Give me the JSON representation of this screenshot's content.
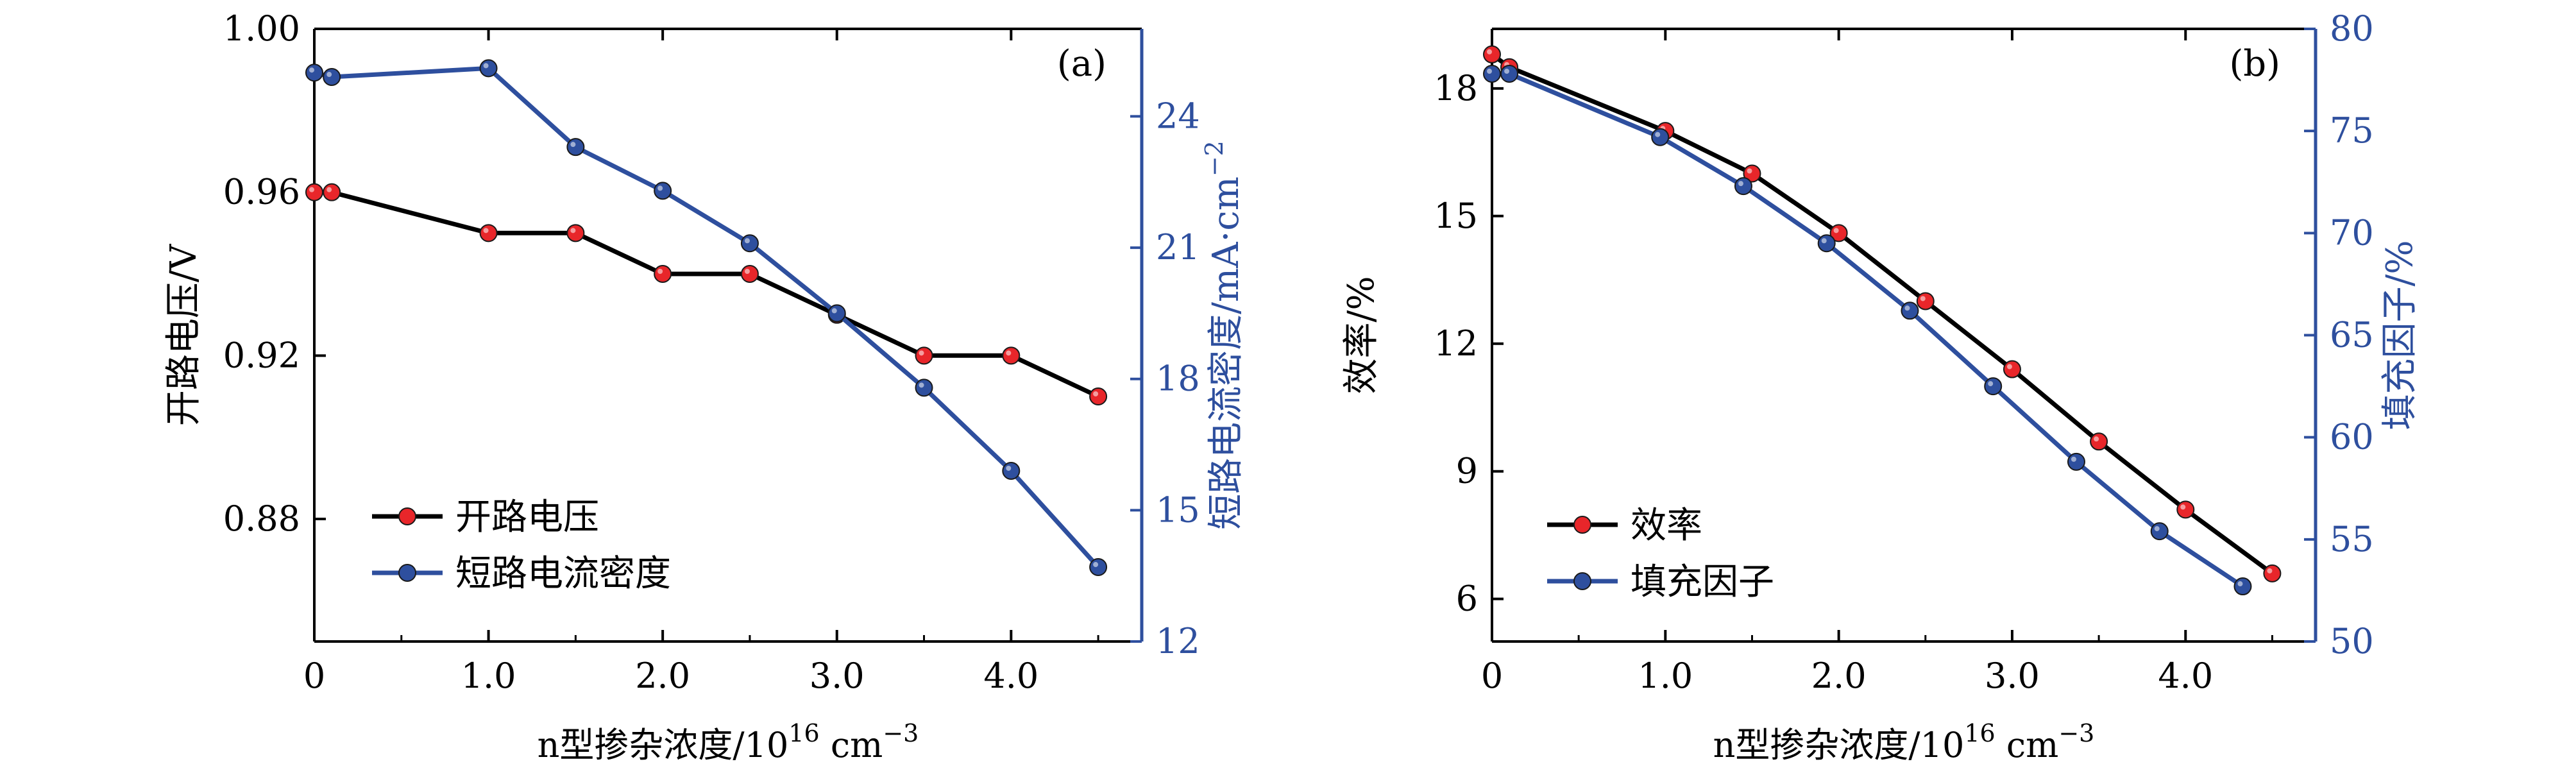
{
  "chart_data": [
    {
      "type": "line",
      "panel_label": "(a)",
      "xlabel_main": "n型掺杂浓度/10",
      "xlabel_sup": "16",
      "xlabel_unit": " cm",
      "xlabel_unit_sup": "−3",
      "ylabel_left": "开路电压/V",
      "ylabel_right": "短路电流密度/mA·cm",
      "ylabel_right_sup": "−2",
      "xlim": [
        0,
        4.75
      ],
      "ylim_left": [
        0.85,
        1.0
      ],
      "ylim_right": [
        12,
        26
      ],
      "x_ticks": [
        {
          "v": 0,
          "label": "0"
        },
        {
          "v": 1,
          "label": "1.0"
        },
        {
          "v": 2,
          "label": "2.0"
        },
        {
          "v": 3,
          "label": "3.0"
        },
        {
          "v": 4,
          "label": "4.0"
        }
      ],
      "y_left_ticks": [
        {
          "v": 0.88,
          "label": "0.88"
        },
        {
          "v": 0.92,
          "label": "0.92"
        },
        {
          "v": 0.96,
          "label": "0.96"
        },
        {
          "v": 1.0,
          "label": "1.00"
        }
      ],
      "y_right_ticks": [
        {
          "v": 12,
          "label": "12"
        },
        {
          "v": 15,
          "label": "15"
        },
        {
          "v": 18,
          "label": "18"
        },
        {
          "v": 21,
          "label": "21"
        },
        {
          "v": 24,
          "label": "24"
        }
      ],
      "series": [
        {
          "name": "开路电压",
          "axis": "left",
          "line_color": "#000000",
          "marker_color": "#e8262a",
          "x": [
            0,
            0.1,
            1.0,
            1.5,
            2.0,
            2.5,
            3.0,
            3.5,
            4.0,
            4.5
          ],
          "y": [
            0.96,
            0.96,
            0.95,
            0.95,
            0.94,
            0.94,
            0.93,
            0.92,
            0.92,
            0.91
          ]
        },
        {
          "name": "短路电流密度",
          "axis": "right",
          "line_color": "#2e4f9e",
          "marker_color": "#2e4f9e",
          "x": [
            0,
            0.1,
            1.0,
            1.5,
            2.0,
            2.5,
            3.0,
            3.5,
            4.0,
            4.5
          ],
          "y": [
            25.0,
            24.9,
            25.1,
            23.3,
            22.3,
            21.1,
            19.5,
            17.8,
            15.9,
            13.7
          ]
        }
      ]
    },
    {
      "type": "line",
      "panel_label": "(b)",
      "xlabel_main": "n型掺杂浓度/10",
      "xlabel_sup": "16",
      "xlabel_unit": " cm",
      "xlabel_unit_sup": "−3",
      "ylabel_left": "效率/%",
      "ylabel_right": "填充因子/%",
      "ylabel_right_sup": "",
      "xlim": [
        0,
        4.75
      ],
      "ylim_left": [
        5,
        19.4
      ],
      "ylim_right": [
        50,
        80
      ],
      "x_ticks": [
        {
          "v": 0,
          "label": "0"
        },
        {
          "v": 1,
          "label": "1.0"
        },
        {
          "v": 2,
          "label": "2.0"
        },
        {
          "v": 3,
          "label": "3.0"
        },
        {
          "v": 4,
          "label": "4.0"
        }
      ],
      "y_left_ticks": [
        {
          "v": 6,
          "label": "6"
        },
        {
          "v": 9,
          "label": "9"
        },
        {
          "v": 12,
          "label": "12"
        },
        {
          "v": 15,
          "label": "15"
        },
        {
          "v": 18,
          "label": "18"
        }
      ],
      "y_right_ticks": [
        {
          "v": 50,
          "label": "50"
        },
        {
          "v": 55,
          "label": "55"
        },
        {
          "v": 60,
          "label": "60"
        },
        {
          "v": 65,
          "label": "65"
        },
        {
          "v": 70,
          "label": "70"
        },
        {
          "v": 75,
          "label": "75"
        },
        {
          "v": 80,
          "label": "80"
        }
      ],
      "series": [
        {
          "name": "效率",
          "axis": "left",
          "line_color": "#000000",
          "marker_color": "#e8262a",
          "x": [
            0,
            0.1,
            1.0,
            1.5,
            2.0,
            2.5,
            3.0,
            3.5,
            4.0,
            4.5
          ],
          "y": [
            18.8,
            18.5,
            17.0,
            16.0,
            14.6,
            13.0,
            11.4,
            9.7,
            8.1,
            6.6
          ]
        },
        {
          "name": "填充因子",
          "axis": "right",
          "line_color": "#2e4f9e",
          "marker_color": "#2e4f9e",
          "x": [
            0,
            0.1,
            0.97,
            1.45,
            1.93,
            2.41,
            2.89,
            3.37,
            3.85,
            4.33
          ],
          "y": [
            77.8,
            77.8,
            74.7,
            72.3,
            69.5,
            66.2,
            62.5,
            58.8,
            55.4,
            52.7
          ]
        }
      ]
    }
  ]
}
